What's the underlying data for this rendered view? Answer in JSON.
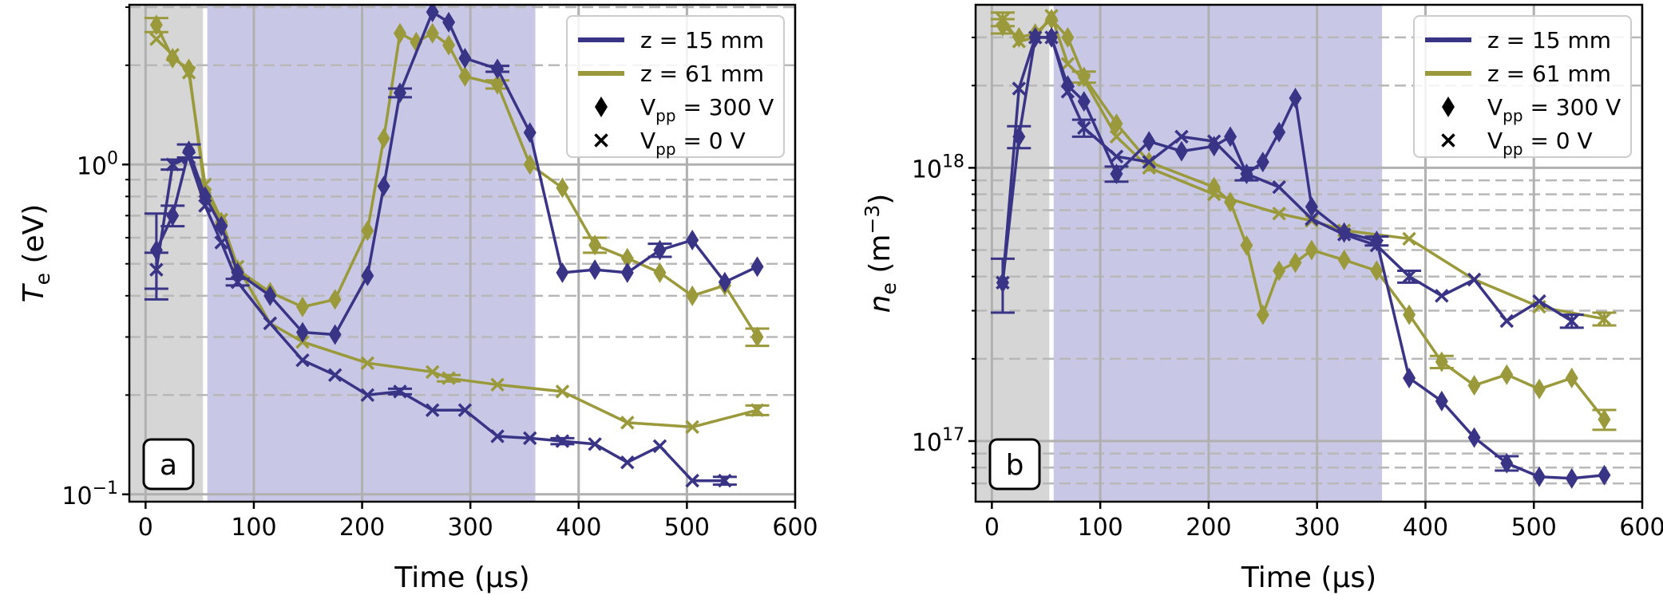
{
  "colors": {
    "z15": "#3a3487",
    "z61": "#9a9a3c",
    "shade_gray": "#d6d6d6",
    "shade_purple": "#c8c8e6",
    "grid_major": "#b0b0b0",
    "grid_minor": "#b8b8b8"
  },
  "legend": {
    "z15": "z = 15 mm",
    "z61": "z = 61 mm",
    "vpp300_prefix": "V",
    "vpp300_sub": "pp",
    "vpp300_suffix": " = 300 V",
    "vpp0_prefix": "V",
    "vpp0_sub": "pp",
    "vpp0_suffix": " = 0 V",
    "marker_vpp300": "diamond",
    "marker_vpp0": "x"
  },
  "chart_data": [
    {
      "type": "line",
      "panel_label": "a",
      "xlabel": "Time (µs)",
      "ylabel_symbol": "T",
      "ylabel_sub": "e",
      "ylabel_unit": " (eV)",
      "yscale": "log",
      "xlim": [
        -15,
        600
      ],
      "ylim": [
        0.095,
        3.05
      ],
      "xticks": [
        0,
        100,
        200,
        300,
        400,
        500,
        600
      ],
      "xtick_labels": [
        "0",
        "100",
        "200",
        "300",
        "400",
        "500",
        "600"
      ],
      "yticks_major": [
        0.1,
        1.0
      ],
      "ytick_labels": [
        {
          "base": "10",
          "exp": "−1"
        },
        {
          "base": "10",
          "exp": "0"
        }
      ],
      "grid": true,
      "legend_position": "top-right",
      "shaded_regions": [
        {
          "x0": -15,
          "x1": 53,
          "color": "shade_gray"
        },
        {
          "x0": 57,
          "x1": 360,
          "color": "shade_purple"
        }
      ],
      "series": [
        {
          "name": "z = 15 mm",
          "vpp": "300 V",
          "color": "z15",
          "marker": "diamond",
          "x": [
            10,
            25,
            40,
            55,
            70,
            85,
            115,
            145,
            175,
            205,
            220,
            235,
            265,
            280,
            295,
            325,
            355,
            385,
            415,
            445,
            475,
            505,
            535,
            565
          ],
          "y": [
            0.55,
            0.7,
            1.1,
            0.8,
            0.65,
            0.47,
            0.4,
            0.31,
            0.305,
            0.46,
            0.86,
            1.65,
            2.9,
            2.7,
            2.1,
            1.95,
            1.25,
            0.47,
            0.48,
            0.47,
            0.55,
            0.59,
            0.44,
            0.49
          ],
          "err": [
            0.16,
            0.05,
            0.05,
            0,
            0,
            0,
            0,
            0,
            0,
            0,
            0,
            0.05,
            0,
            0,
            0,
            0.04,
            0,
            0,
            0,
            0,
            0.025,
            0,
            0,
            0
          ]
        },
        {
          "name": "z = 15 mm",
          "vpp": "0 V",
          "color": "z15",
          "marker": "x",
          "x": [
            10,
            25,
            40,
            55,
            70,
            85,
            115,
            145,
            175,
            205,
            235,
            265,
            295,
            325,
            355,
            385,
            415,
            445,
            475,
            505,
            535
          ],
          "y": [
            0.48,
            1.0,
            1.05,
            0.75,
            0.58,
            0.44,
            0.33,
            0.255,
            0.23,
            0.2,
            0.205,
            0.18,
            0.18,
            0.15,
            0.148,
            0.145,
            0.142,
            0.125,
            0.14,
            0.11,
            0.11
          ],
          "err": [
            0.06,
            0.035,
            0,
            0,
            0,
            0.01,
            0,
            0,
            0,
            0,
            0.004,
            0,
            0,
            0,
            0,
            0.003,
            0,
            0,
            0,
            0,
            0.003
          ]
        },
        {
          "name": "z = 61 mm",
          "vpp": "300 V",
          "color": "z61",
          "marker": "diamond",
          "x": [
            10,
            25,
            40,
            55,
            70,
            85,
            115,
            145,
            175,
            205,
            220,
            235,
            250,
            265,
            280,
            295,
            325,
            355,
            385,
            415,
            445,
            475,
            505,
            535,
            565
          ],
          "y": [
            2.65,
            2.1,
            1.95,
            0.82,
            0.67,
            0.48,
            0.41,
            0.37,
            0.39,
            0.63,
            1.2,
            2.5,
            2.35,
            2.5,
            2.3,
            1.85,
            1.75,
            1.0,
            0.85,
            0.57,
            0.52,
            0.47,
            0.4,
            0.43,
            0.3
          ],
          "err": [
            0.13,
            0,
            0,
            0,
            0,
            0,
            0,
            0,
            0,
            0,
            0,
            0,
            0,
            0,
            0,
            0,
            0.05,
            0,
            0,
            0.03,
            0,
            0,
            0,
            0,
            0.018
          ]
        },
        {
          "name": "z = 61 mm",
          "vpp": "0 V",
          "color": "z61",
          "marker": "x",
          "x": [
            10,
            25,
            40,
            55,
            70,
            85,
            115,
            145,
            205,
            265,
            280,
            325,
            385,
            445,
            505,
            565
          ],
          "y": [
            2.4,
            2.15,
            1.9,
            0.87,
            0.68,
            0.49,
            0.33,
            0.29,
            0.25,
            0.235,
            0.225,
            0.215,
            0.205,
            0.165,
            0.16,
            0.18
          ],
          "err": [
            0,
            0,
            0,
            0,
            0,
            0,
            0,
            0,
            0,
            0,
            0.005,
            0,
            0,
            0,
            0,
            0.006
          ]
        }
      ]
    },
    {
      "type": "line",
      "panel_label": "b",
      "xlabel": "Time (µs)",
      "ylabel_symbol": "n",
      "ylabel_sub": "e",
      "ylabel_unit": " (m",
      "ylabel_unit_exp": "−3",
      "ylabel_unit_close": ")",
      "yscale": "log",
      "xlim": [
        -15,
        600
      ],
      "ylim": [
        6e+16,
        3.95e+18
      ],
      "xticks": [
        0,
        100,
        200,
        300,
        400,
        500,
        600
      ],
      "xtick_labels": [
        "0",
        "100",
        "200",
        "300",
        "400",
        "500",
        "600"
      ],
      "yticks_major": [
        1e+17,
        1e+18
      ],
      "ytick_labels": [
        {
          "base": "10",
          "exp": "17"
        },
        {
          "base": "10",
          "exp": "18"
        }
      ],
      "grid": true,
      "legend_position": "top-right",
      "shaded_regions": [
        {
          "x0": -15,
          "x1": 53,
          "color": "shade_gray"
        },
        {
          "x0": 57,
          "x1": 360,
          "color": "shade_purple"
        }
      ],
      "series": [
        {
          "name": "z = 15 mm",
          "vpp": "300 V",
          "color": "z15",
          "marker": "diamond",
          "x": [
            10,
            25,
            40,
            55,
            70,
            85,
            115,
            145,
            175,
            205,
            220,
            235,
            250,
            265,
            280,
            295,
            325,
            355,
            385,
            415,
            445,
            475,
            505,
            535,
            565
          ],
          "y": [
            3.8e+17,
            1.3e+18,
            3e+18,
            3e+18,
            2e+18,
            1.75e+18,
            9.5e+17,
            1.25e+18,
            1.15e+18,
            1.2e+18,
            1.3e+18,
            9.5e+17,
            1.05e+18,
            1.35e+18,
            1.8e+18,
            7.2e+17,
            5.8e+17,
            5.4e+17,
            1.7e+17,
            1.4e+17,
            1.03e+17,
            8.3e+16,
            7.4e+16,
            7.3e+16,
            7.5e+16
          ],
          "err": [
            0,
            1.2e+17,
            0,
            0,
            0,
            0,
            6e+16,
            0,
            0,
            0,
            0,
            5e+16,
            0,
            0,
            0,
            0,
            0,
            2e+16,
            0,
            0,
            0,
            5000000000000000.0,
            0,
            0,
            0
          ]
        },
        {
          "name": "z = 15 mm",
          "vpp": "0 V",
          "color": "z15",
          "marker": "x",
          "x": [
            10,
            25,
            40,
            55,
            70,
            85,
            115,
            145,
            175,
            205,
            235,
            265,
            295,
            325,
            355,
            385,
            415,
            445,
            475,
            505,
            535
          ],
          "y": [
            3.8e+17,
            1.95e+18,
            3e+18,
            3e+18,
            1.9e+18,
            1.4e+18,
            1.1e+18,
            1.05e+18,
            1.3e+18,
            1.25e+18,
            9.5e+17,
            8.5e+17,
            6.5e+17,
            5.7e+17,
            5.2e+17,
            4e+17,
            3.4e+17,
            3.9e+17,
            2.75e+17,
            3.25e+17,
            2.75e+17
          ],
          "err": [
            8.5e+16,
            0,
            0,
            0,
            0,
            1e+17,
            0,
            0,
            0,
            0,
            0,
            0,
            0,
            0,
            0,
            2e+16,
            0,
            0,
            0,
            0,
            1.5e+16
          ]
        },
        {
          "name": "z = 61 mm",
          "vpp": "300 V",
          "color": "z61",
          "marker": "diamond",
          "x": [
            10,
            25,
            40,
            55,
            70,
            85,
            115,
            145,
            205,
            220,
            235,
            250,
            265,
            280,
            295,
            325,
            355,
            385,
            415,
            445,
            475,
            505,
            535,
            565
          ],
          "y": [
            3.3e+18,
            3e+18,
            3.1e+18,
            3.5e+18,
            3e+18,
            2.15e+18,
            1.45e+18,
            1.05e+18,
            8.5e+17,
            7.5e+17,
            5.2e+17,
            2.9e+17,
            4.2e+17,
            4.5e+17,
            5e+17,
            4.6e+17,
            4.2e+17,
            2.9e+17,
            1.95e+17,
            1.6e+17,
            1.75e+17,
            1.55e+17,
            1.7e+17,
            1.2e+17
          ],
          "err": [
            2e+17,
            0,
            0,
            0,
            0,
            1e+17,
            0,
            0,
            0,
            0,
            0,
            0,
            0,
            0,
            0,
            0,
            0,
            0,
            1e+16,
            0,
            0,
            0,
            0,
            1e+16
          ]
        },
        {
          "name": "z = 61 mm",
          "vpp": "0 V",
          "color": "z61",
          "marker": "x",
          "x": [
            10,
            25,
            40,
            55,
            70,
            85,
            115,
            145,
            205,
            265,
            295,
            325,
            385,
            445,
            505,
            565
          ],
          "y": [
            3.5e+18,
            2.9e+18,
            3e+18,
            3.6e+18,
            2.4e+18,
            2.1e+18,
            1.3e+18,
            1e+18,
            8e+17,
            6.8e+17,
            6.4e+17,
            5.9e+17,
            5.5e+17,
            3.9e+17,
            3.1e+17,
            2.8e+17
          ],
          "err": [
            2e+17,
            0,
            0,
            0,
            0,
            0,
            0,
            0,
            0,
            0,
            0,
            0,
            0,
            0,
            0,
            1.5e+16
          ]
        }
      ]
    }
  ]
}
